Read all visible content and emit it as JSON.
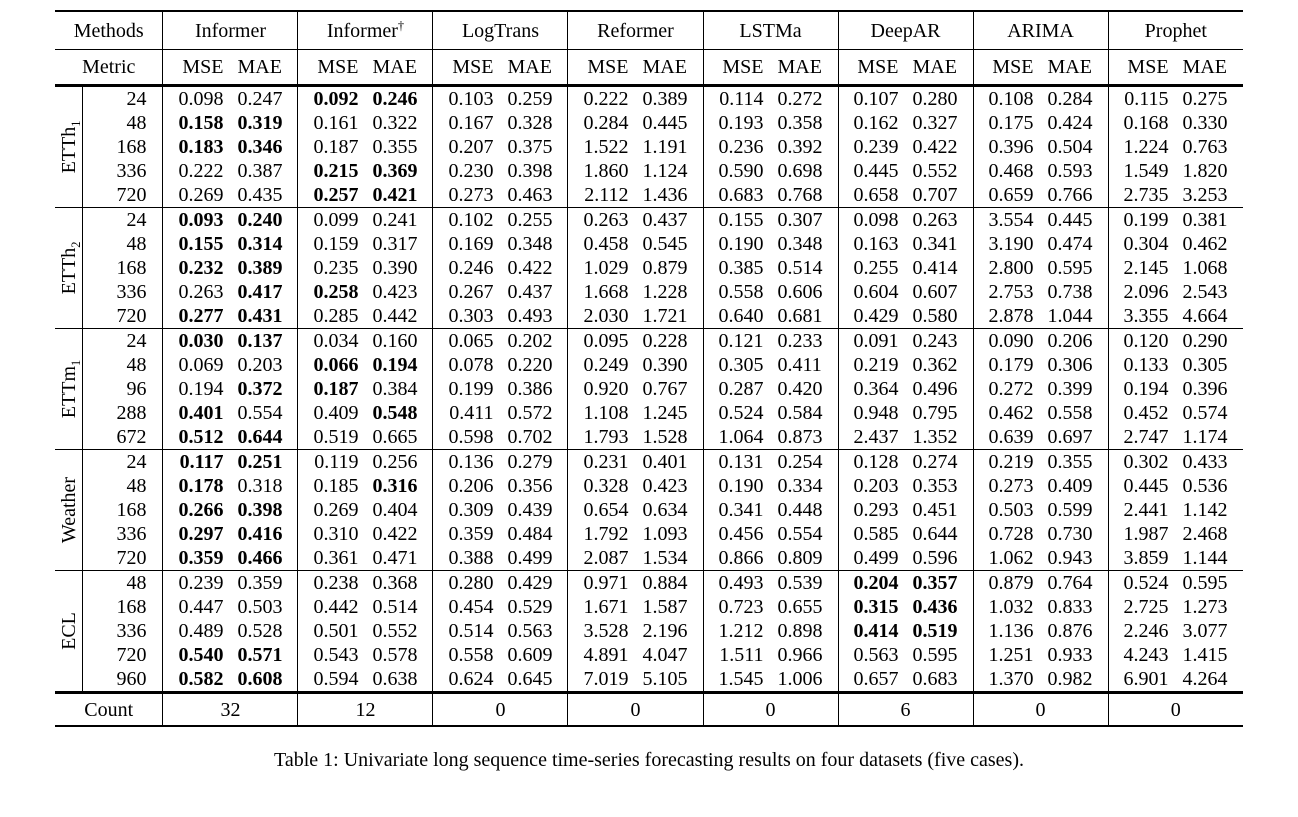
{
  "page": {
    "background": "#ffffff",
    "text_color": "#000000",
    "rule_color": "#000000"
  },
  "table": {
    "header": {
      "methods_label": "Methods",
      "metric_label": "Metric",
      "mse": "MSE",
      "mae": "MAE",
      "methods": [
        {
          "name": "Informer",
          "sup": ""
        },
        {
          "name": "Informer",
          "sup": "†"
        },
        {
          "name": "LogTrans",
          "sup": ""
        },
        {
          "name": "Reformer",
          "sup": ""
        },
        {
          "name": "LSTMa",
          "sup": ""
        },
        {
          "name": "DeepAR",
          "sup": ""
        },
        {
          "name": "ARIMA",
          "sup": ""
        },
        {
          "name": "Prophet",
          "sup": ""
        }
      ]
    },
    "groups": [
      {
        "dataset": "ETTh",
        "sub": "1",
        "rows": [
          {
            "horizon": "24",
            "values": [
              "0.098",
              "0.247",
              "0.092",
              "0.246",
              "0.103",
              "0.259",
              "0.222",
              "0.389",
              "0.114",
              "0.272",
              "0.107",
              "0.280",
              "0.108",
              "0.284",
              "0.115",
              "0.275"
            ],
            "bold": [
              2,
              3
            ]
          },
          {
            "horizon": "48",
            "values": [
              "0.158",
              "0.319",
              "0.161",
              "0.322",
              "0.167",
              "0.328",
              "0.284",
              "0.445",
              "0.193",
              "0.358",
              "0.162",
              "0.327",
              "0.175",
              "0.424",
              "0.168",
              "0.330"
            ],
            "bold": [
              0,
              1
            ]
          },
          {
            "horizon": "168",
            "values": [
              "0.183",
              "0.346",
              "0.187",
              "0.355",
              "0.207",
              "0.375",
              "1.522",
              "1.191",
              "0.236",
              "0.392",
              "0.239",
              "0.422",
              "0.396",
              "0.504",
              "1.224",
              "0.763"
            ],
            "bold": [
              0,
              1
            ]
          },
          {
            "horizon": "336",
            "values": [
              "0.222",
              "0.387",
              "0.215",
              "0.369",
              "0.230",
              "0.398",
              "1.860",
              "1.124",
              "0.590",
              "0.698",
              "0.445",
              "0.552",
              "0.468",
              "0.593",
              "1.549",
              "1.820"
            ],
            "bold": [
              2,
              3
            ]
          },
          {
            "horizon": "720",
            "values": [
              "0.269",
              "0.435",
              "0.257",
              "0.421",
              "0.273",
              "0.463",
              "2.112",
              "1.436",
              "0.683",
              "0.768",
              "0.658",
              "0.707",
              "0.659",
              "0.766",
              "2.735",
              "3.253"
            ],
            "bold": [
              2,
              3
            ]
          }
        ]
      },
      {
        "dataset": "ETTh",
        "sub": "2",
        "rows": [
          {
            "horizon": "24",
            "values": [
              "0.093",
              "0.240",
              "0.099",
              "0.241",
              "0.102",
              "0.255",
              "0.263",
              "0.437",
              "0.155",
              "0.307",
              "0.098",
              "0.263",
              "3.554",
              "0.445",
              "0.199",
              "0.381"
            ],
            "bold": [
              0,
              1
            ]
          },
          {
            "horizon": "48",
            "values": [
              "0.155",
              "0.314",
              "0.159",
              "0.317",
              "0.169",
              "0.348",
              "0.458",
              "0.545",
              "0.190",
              "0.348",
              "0.163",
              "0.341",
              "3.190",
              "0.474",
              "0.304",
              "0.462"
            ],
            "bold": [
              0,
              1
            ]
          },
          {
            "horizon": "168",
            "values": [
              "0.232",
              "0.389",
              "0.235",
              "0.390",
              "0.246",
              "0.422",
              "1.029",
              "0.879",
              "0.385",
              "0.514",
              "0.255",
              "0.414",
              "2.800",
              "0.595",
              "2.145",
              "1.068"
            ],
            "bold": [
              0,
              1
            ]
          },
          {
            "horizon": "336",
            "values": [
              "0.263",
              "0.417",
              "0.258",
              "0.423",
              "0.267",
              "0.437",
              "1.668",
              "1.228",
              "0.558",
              "0.606",
              "0.604",
              "0.607",
              "2.753",
              "0.738",
              "2.096",
              "2.543"
            ],
            "bold": [
              1,
              2
            ]
          },
          {
            "horizon": "720",
            "values": [
              "0.277",
              "0.431",
              "0.285",
              "0.442",
              "0.303",
              "0.493",
              "2.030",
              "1.721",
              "0.640",
              "0.681",
              "0.429",
              "0.580",
              "2.878",
              "1.044",
              "3.355",
              "4.664"
            ],
            "bold": [
              0,
              1
            ]
          }
        ]
      },
      {
        "dataset": "ETTm",
        "sub": "1",
        "rows": [
          {
            "horizon": "24",
            "values": [
              "0.030",
              "0.137",
              "0.034",
              "0.160",
              "0.065",
              "0.202",
              "0.095",
              "0.228",
              "0.121",
              "0.233",
              "0.091",
              "0.243",
              "0.090",
              "0.206",
              "0.120",
              "0.290"
            ],
            "bold": [
              0,
              1
            ]
          },
          {
            "horizon": "48",
            "values": [
              "0.069",
              "0.203",
              "0.066",
              "0.194",
              "0.078",
              "0.220",
              "0.249",
              "0.390",
              "0.305",
              "0.411",
              "0.219",
              "0.362",
              "0.179",
              "0.306",
              "0.133",
              "0.305"
            ],
            "bold": [
              2,
              3
            ]
          },
          {
            "horizon": "96",
            "values": [
              "0.194",
              "0.372",
              "0.187",
              "0.384",
              "0.199",
              "0.386",
              "0.920",
              "0.767",
              "0.287",
              "0.420",
              "0.364",
              "0.496",
              "0.272",
              "0.399",
              "0.194",
              "0.396"
            ],
            "bold": [
              1,
              2
            ]
          },
          {
            "horizon": "288",
            "values": [
              "0.401",
              "0.554",
              "0.409",
              "0.548",
              "0.411",
              "0.572",
              "1.108",
              "1.245",
              "0.524",
              "0.584",
              "0.948",
              "0.795",
              "0.462",
              "0.558",
              "0.452",
              "0.574"
            ],
            "bold": [
              0,
              3
            ]
          },
          {
            "horizon": "672",
            "values": [
              "0.512",
              "0.644",
              "0.519",
              "0.665",
              "0.598",
              "0.702",
              "1.793",
              "1.528",
              "1.064",
              "0.873",
              "2.437",
              "1.352",
              "0.639",
              "0.697",
              "2.747",
              "1.174"
            ],
            "bold": [
              0,
              1
            ]
          }
        ]
      },
      {
        "dataset": "Weather",
        "sub": "",
        "rows": [
          {
            "horizon": "24",
            "values": [
              "0.117",
              "0.251",
              "0.119",
              "0.256",
              "0.136",
              "0.279",
              "0.231",
              "0.401",
              "0.131",
              "0.254",
              "0.128",
              "0.274",
              "0.219",
              "0.355",
              "0.302",
              "0.433"
            ],
            "bold": [
              0,
              1
            ]
          },
          {
            "horizon": "48",
            "values": [
              "0.178",
              "0.318",
              "0.185",
              "0.316",
              "0.206",
              "0.356",
              "0.328",
              "0.423",
              "0.190",
              "0.334",
              "0.203",
              "0.353",
              "0.273",
              "0.409",
              "0.445",
              "0.536"
            ],
            "bold": [
              0,
              3
            ]
          },
          {
            "horizon": "168",
            "values": [
              "0.266",
              "0.398",
              "0.269",
              "0.404",
              "0.309",
              "0.439",
              "0.654",
              "0.634",
              "0.341",
              "0.448",
              "0.293",
              "0.451",
              "0.503",
              "0.599",
              "2.441",
              "1.142"
            ],
            "bold": [
              0,
              1
            ]
          },
          {
            "horizon": "336",
            "values": [
              "0.297",
              "0.416",
              "0.310",
              "0.422",
              "0.359",
              "0.484",
              "1.792",
              "1.093",
              "0.456",
              "0.554",
              "0.585",
              "0.644",
              "0.728",
              "0.730",
              "1.987",
              "2.468"
            ],
            "bold": [
              0,
              1
            ]
          },
          {
            "horizon": "720",
            "values": [
              "0.359",
              "0.466",
              "0.361",
              "0.471",
              "0.388",
              "0.499",
              "2.087",
              "1.534",
              "0.866",
              "0.809",
              "0.499",
              "0.596",
              "1.062",
              "0.943",
              "3.859",
              "1.144"
            ],
            "bold": [
              0,
              1
            ]
          }
        ]
      },
      {
        "dataset": "ECL",
        "sub": "",
        "rows": [
          {
            "horizon": "48",
            "values": [
              "0.239",
              "0.359",
              "0.238",
              "0.368",
              "0.280",
              "0.429",
              "0.971",
              "0.884",
              "0.493",
              "0.539",
              "0.204",
              "0.357",
              "0.879",
              "0.764",
              "0.524",
              "0.595"
            ],
            "bold": [
              10,
              11
            ]
          },
          {
            "horizon": "168",
            "values": [
              "0.447",
              "0.503",
              "0.442",
              "0.514",
              "0.454",
              "0.529",
              "1.671",
              "1.587",
              "0.723",
              "0.655",
              "0.315",
              "0.436",
              "1.032",
              "0.833",
              "2.725",
              "1.273"
            ],
            "bold": [
              10,
              11
            ]
          },
          {
            "horizon": "336",
            "values": [
              "0.489",
              "0.528",
              "0.501",
              "0.552",
              "0.514",
              "0.563",
              "3.528",
              "2.196",
              "1.212",
              "0.898",
              "0.414",
              "0.519",
              "1.136",
              "0.876",
              "2.246",
              "3.077"
            ],
            "bold": [
              10,
              11
            ]
          },
          {
            "horizon": "720",
            "values": [
              "0.540",
              "0.571",
              "0.543",
              "0.578",
              "0.558",
              "0.609",
              "4.891",
              "4.047",
              "1.511",
              "0.966",
              "0.563",
              "0.595",
              "1.251",
              "0.933",
              "4.243",
              "1.415"
            ],
            "bold": [
              0,
              1
            ]
          },
          {
            "horizon": "960",
            "values": [
              "0.582",
              "0.608",
              "0.594",
              "0.638",
              "0.624",
              "0.645",
              "7.019",
              "5.105",
              "1.545",
              "1.006",
              "0.657",
              "0.683",
              "1.370",
              "0.982",
              "6.901",
              "4.264"
            ],
            "bold": [
              0,
              1
            ]
          }
        ]
      }
    ],
    "count_row": {
      "label": "Count",
      "values": [
        "32",
        "12",
        "0",
        "0",
        "0",
        "6",
        "0",
        "0"
      ]
    },
    "caption": "Table 1: Univariate long sequence time-series forecasting results on four datasets (five cases)."
  }
}
